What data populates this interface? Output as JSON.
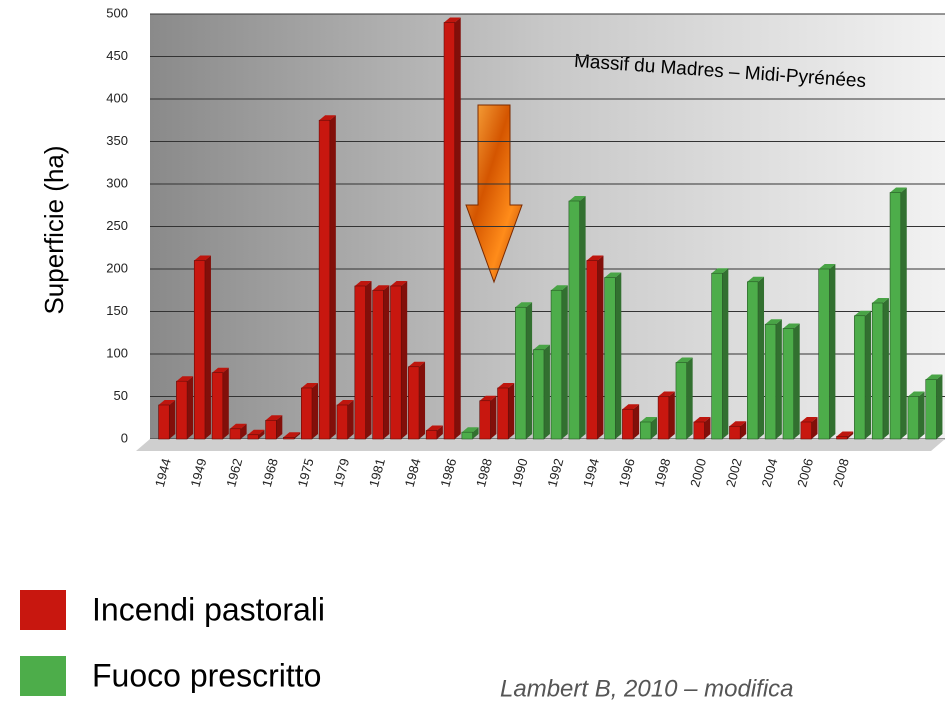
{
  "chart_data": {
    "type": "bar3d",
    "y_label": "Superficie (ha)",
    "annotation": "Massif du Madres – Midi-Pyrénées",
    "source": "Lambert B, 2010 – modifica",
    "categories": [
      "1944",
      null,
      "1949",
      null,
      "1962",
      null,
      "1968",
      null,
      "1975",
      null,
      "1979",
      null,
      "1981",
      null,
      "1984",
      null,
      "1986",
      null,
      "1988",
      null,
      "1990",
      null,
      "1992",
      null,
      "1994",
      null,
      "1996",
      null,
      "1998",
      null,
      "2000",
      null,
      "2002",
      null,
      "2004",
      null,
      "2006",
      null,
      "2008",
      null,
      null,
      null,
      null,
      null
    ],
    "series": [
      {
        "name": "Incendi pastorali",
        "color": "#c8170f",
        "values": [
          40,
          68,
          210,
          78,
          12,
          5,
          22,
          2,
          60,
          375,
          40,
          180,
          175,
          180,
          85,
          10,
          490,
          null,
          45,
          60,
          null,
          null,
          null,
          null,
          210,
          null,
          35,
          null,
          50,
          null,
          20,
          null,
          15,
          null,
          null,
          null,
          20,
          null,
          3,
          null,
          null,
          null,
          null,
          null
        ]
      },
      {
        "name": "Fuoco prescritto",
        "color": "#4dad4a",
        "values": [
          null,
          null,
          null,
          null,
          null,
          null,
          null,
          null,
          null,
          null,
          null,
          null,
          null,
          null,
          null,
          null,
          null,
          8,
          null,
          null,
          155,
          105,
          175,
          280,
          null,
          190,
          null,
          20,
          null,
          90,
          null,
          195,
          null,
          185,
          135,
          130,
          null,
          200,
          null,
          145,
          160,
          290,
          50,
          70
        ]
      }
    ],
    "ylim": [
      0,
      500
    ],
    "yticks": [
      0,
      50,
      100,
      150,
      200,
      250,
      300,
      350,
      400,
      450,
      500
    ],
    "grid": true
  }
}
